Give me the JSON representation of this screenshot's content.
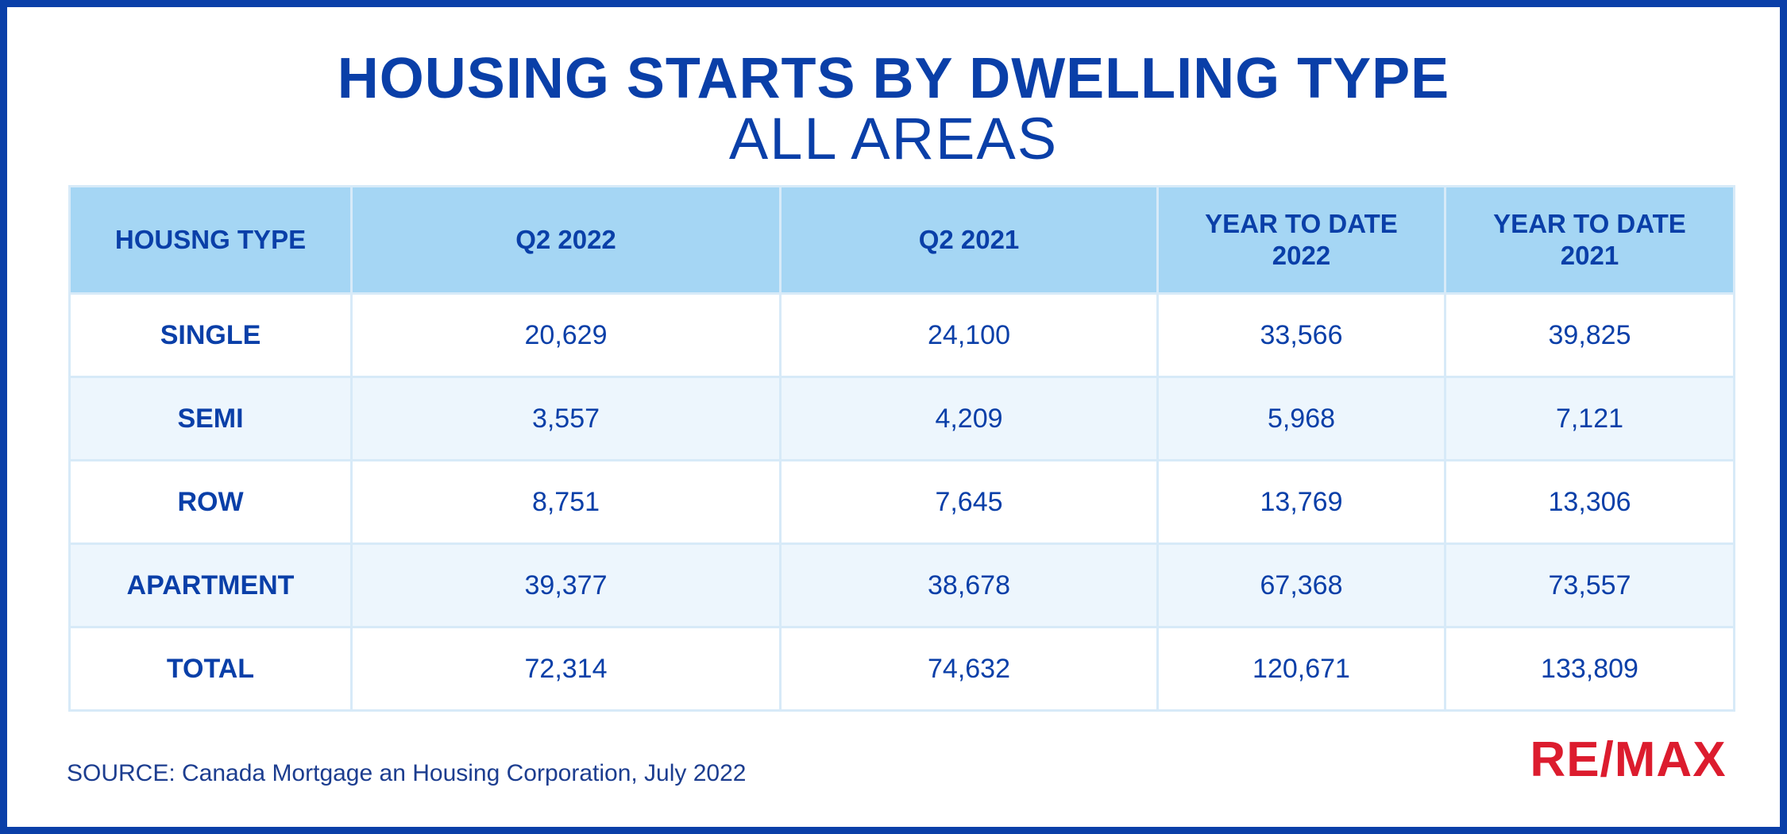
{
  "header": {
    "title": "HOUSING STARTS BY DWELLING TYPE",
    "subtitle": "ALL AREAS"
  },
  "chart_data": {
    "type": "table",
    "title": "HOUSING STARTS BY DWELLING TYPE",
    "subtitle": "ALL AREAS",
    "columns": [
      "HOUSNG TYPE",
      "Q2 2022",
      "Q2 2021",
      "YEAR TO DATE 2022",
      "YEAR TO DATE 2021"
    ],
    "rows": [
      [
        "SINGLE",
        "20,629",
        "24,100",
        "33,566",
        "39,825"
      ],
      [
        "SEMI",
        "3,557",
        "4,209",
        "5,968",
        "7,121"
      ],
      [
        "ROW",
        "8,751",
        "7,645",
        "13,769",
        "13,306"
      ],
      [
        "APARTMENT",
        "39,377",
        "38,678",
        "67,368",
        "73,557"
      ],
      [
        "TOTAL",
        "72,314",
        "74,632",
        "120,671",
        "133,809"
      ]
    ]
  },
  "footer": {
    "source": "SOURCE: Canada Mortgage an Housing Corporation, July 2022",
    "logo_text": "RE/MAX"
  },
  "colors": {
    "brand_blue": "#0a3fa8",
    "header_fill": "#a5d6f4",
    "row_alt": "#edf6fd",
    "logo_red": "#dc1c2e"
  }
}
